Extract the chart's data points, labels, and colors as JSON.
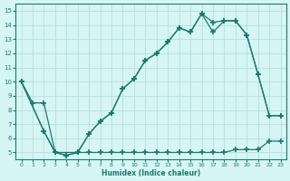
{
  "line1_x": [
    0,
    1,
    2,
    3,
    4,
    5,
    6,
    7,
    8,
    9,
    10,
    11,
    12,
    13,
    14,
    15,
    16,
    17,
    18,
    19,
    20,
    21,
    22,
    23
  ],
  "line1_y": [
    10.0,
    8.5,
    8.5,
    5.0,
    4.8,
    5.0,
    5.0,
    5.0,
    5.0,
    5.0,
    5.0,
    5.0,
    5.0,
    5.0,
    5.0,
    5.0,
    5.0,
    5.0,
    5.0,
    5.2,
    5.2,
    5.2,
    5.8,
    5.8
  ],
  "line2_x": [
    0,
    2,
    3,
    4,
    5,
    6,
    7,
    8,
    9,
    10,
    11,
    12,
    13,
    14,
    15,
    16,
    17,
    18,
    19,
    20,
    21,
    22,
    23
  ],
  "line2_y": [
    10.0,
    6.5,
    5.0,
    4.8,
    5.0,
    6.3,
    7.2,
    7.8,
    9.5,
    10.2,
    11.5,
    12.0,
    12.8,
    13.8,
    13.5,
    14.8,
    13.5,
    14.3,
    14.3,
    13.3,
    10.5,
    7.6,
    7.6
  ],
  "line3_x": [
    0,
    2,
    3,
    5,
    6,
    7,
    8,
    9,
    10,
    11,
    12,
    13,
    14,
    15,
    16,
    17,
    18,
    19,
    20,
    21,
    22,
    23
  ],
  "line3_y": [
    10.0,
    6.5,
    5.0,
    5.0,
    6.3,
    7.2,
    7.8,
    9.5,
    10.2,
    11.5,
    12.0,
    12.8,
    13.8,
    13.5,
    14.8,
    14.2,
    14.3,
    14.3,
    13.3,
    10.5,
    7.6,
    7.6
  ],
  "color": "#1a7a6e",
  "bg_color": "#d6f5f5",
  "grid_color": "#b8dede",
  "xlabel": "Humidex (Indice chaleur)",
  "xlim": [
    -0.5,
    23.5
  ],
  "ylim": [
    4.5,
    15.5
  ],
  "yticks": [
    5,
    6,
    7,
    8,
    9,
    10,
    11,
    12,
    13,
    14,
    15
  ],
  "xticks": [
    0,
    1,
    2,
    3,
    4,
    5,
    6,
    7,
    8,
    9,
    10,
    11,
    12,
    13,
    14,
    15,
    16,
    17,
    18,
    19,
    20,
    21,
    22,
    23
  ]
}
